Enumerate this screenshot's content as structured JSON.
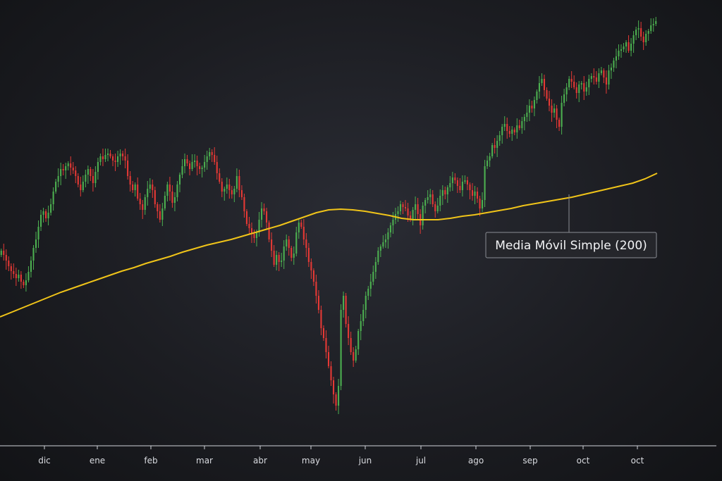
{
  "chart_data": {
    "type": "candlestick",
    "months": [
      "dic",
      "ene",
      "feb",
      "mar",
      "abr",
      "may",
      "jun",
      "jul",
      "ago",
      "sep",
      "oct",
      "oct"
    ],
    "x_axis": "time (daily candles)",
    "y_axis": "price (unlabeled)",
    "grid": false,
    "colors": {
      "up": "#4caf50",
      "down": "#e53935",
      "sma": "#f0c419",
      "axis": "#cfd2d8",
      "annotation_border": "#8a8d94",
      "annotation_bg": "#25262b"
    },
    "series": [
      {
        "name": "Media Móvil Simple (200)",
        "kind": "line",
        "values": [
          450,
          443,
          436,
          429,
          422,
          415,
          409,
          403,
          397,
          391,
          385,
          380,
          374,
          369,
          364,
          358,
          353,
          348,
          344,
          340,
          335,
          330,
          325,
          320,
          314,
          308,
          302,
          298,
          297,
          298,
          300,
          303,
          306,
          310,
          312,
          312,
          312,
          310,
          307,
          305,
          302,
          299,
          296,
          292,
          289,
          286,
          283,
          280,
          276,
          272,
          268,
          264,
          260,
          254,
          246
        ]
      }
    ],
    "candles_close": [
      356,
      362,
      370,
      378,
      385,
      389,
      395,
      390,
      400,
      405,
      398,
      386,
      370,
      352,
      340,
      322,
      305,
      300,
      310,
      302,
      290,
      272,
      258,
      250,
      240,
      242,
      236,
      232,
      238,
      242,
      250,
      262,
      270,
      258,
      248,
      240,
      250,
      260,
      244,
      230,
      222,
      226,
      220,
      218,
      222,
      228,
      230,
      222,
      218,
      222,
      228,
      250,
      262,
      270,
      262,
      282,
      290,
      298,
      280,
      268,
      262,
      270,
      290,
      300,
      312,
      296,
      278,
      262,
      272,
      288,
      280,
      262,
      248,
      236,
      226,
      232,
      240,
      230,
      228,
      236,
      240,
      238,
      230,
      222,
      216,
      220,
      230,
      246,
      258,
      272,
      268,
      262,
      270,
      276,
      268,
      250,
      270,
      280,
      300,
      318,
      324,
      332,
      338,
      330,
      312,
      296,
      300,
      316,
      340,
      356,
      376,
      362,
      372,
      370,
      350,
      340,
      352,
      366,
      360,
      330,
      316,
      322,
      340,
      352,
      372,
      384,
      400,
      420,
      440,
      466,
      480,
      500,
      520,
      540,
      560,
      576,
      548,
      440,
      420,
      460,
      480,
      500,
      512,
      496,
      470,
      456,
      440,
      420,
      410,
      400,
      386,
      372,
      356,
      350,
      344,
      340,
      330,
      320,
      312,
      304,
      300,
      290,
      294,
      296,
      306,
      312,
      298,
      290,
      304,
      320,
      292,
      284,
      280,
      276,
      290,
      300,
      292,
      278,
      270,
      276,
      266,
      260,
      252,
      256,
      264,
      270,
      258,
      256,
      262,
      270,
      278,
      272,
      282,
      296,
      284,
      236,
      228,
      222,
      206,
      210,
      200,
      192,
      180,
      176,
      186,
      190,
      184,
      188,
      178,
      182,
      172,
      166,
      160,
      150,
      154,
      142,
      130,
      118,
      112,
      128,
      140,
      150,
      160,
      154,
      170,
      180,
      146,
      134,
      124,
      112,
      116,
      124,
      132,
      120,
      118,
      130,
      124,
      112,
      108,
      110,
      116,
      104,
      100,
      110,
      120,
      100,
      96,
      86,
      80,
      72,
      70,
      66,
      60,
      72,
      62,
      50,
      42,
      40,
      52,
      60,
      48,
      44,
      36,
      34,
      30
    ]
  },
  "annotation": {
    "label": "Media Móvil Simple (200)"
  }
}
